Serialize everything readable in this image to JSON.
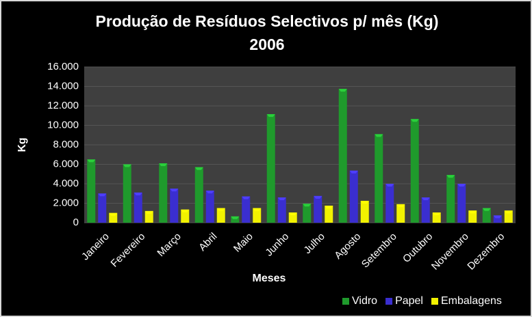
{
  "chart_data": {
    "type": "bar",
    "title": "Produção de Resíduos Selectivos p/ mês (Kg)",
    "subtitle": "2006",
    "x_label": "Meses",
    "y_label": "Kg",
    "categories": [
      "Janeiro",
      "Fevereiro",
      "Março",
      "Abril",
      "Maio",
      "Junho",
      "Julho",
      "Agosto",
      "Setembro",
      "Outubro",
      "Novembro",
      "Dezembro"
    ],
    "series": [
      {
        "name": "Vidro",
        "color": "#1f9a2c",
        "values": [
          6500,
          6000,
          6100,
          5700,
          650,
          11150,
          1950,
          13750,
          9100,
          10650,
          4900,
          1500
        ]
      },
      {
        "name": "Papel",
        "color": "#3a2ed0",
        "values": [
          3000,
          3100,
          3500,
          3300,
          2700,
          2600,
          2750,
          5350,
          4000,
          2600,
          4000,
          750
        ]
      },
      {
        "name": "Embalagens",
        "color": "#f2f200",
        "values": [
          1000,
          1200,
          1350,
          1500,
          1500,
          1050,
          1750,
          2250,
          1900,
          1050,
          1250,
          1250
        ]
      }
    ],
    "ylim": [
      0,
      16000
    ],
    "yticks": [
      0,
      {
        "value": 2000,
        "label": "2.000"
      },
      {
        "value": 4000,
        "label": "4.000"
      },
      {
        "value": 6000,
        "label": "6.000"
      },
      {
        "value": 8000,
        "label": "8.000"
      },
      {
        "value": 10000,
        "label": "10.000"
      },
      {
        "value": 12000,
        "label": "12.000"
      },
      {
        "value": 14000,
        "label": "14.000"
      },
      {
        "value": 16000,
        "label": "16.000"
      }
    ],
    "grid": true,
    "legend": "bottom-right"
  }
}
